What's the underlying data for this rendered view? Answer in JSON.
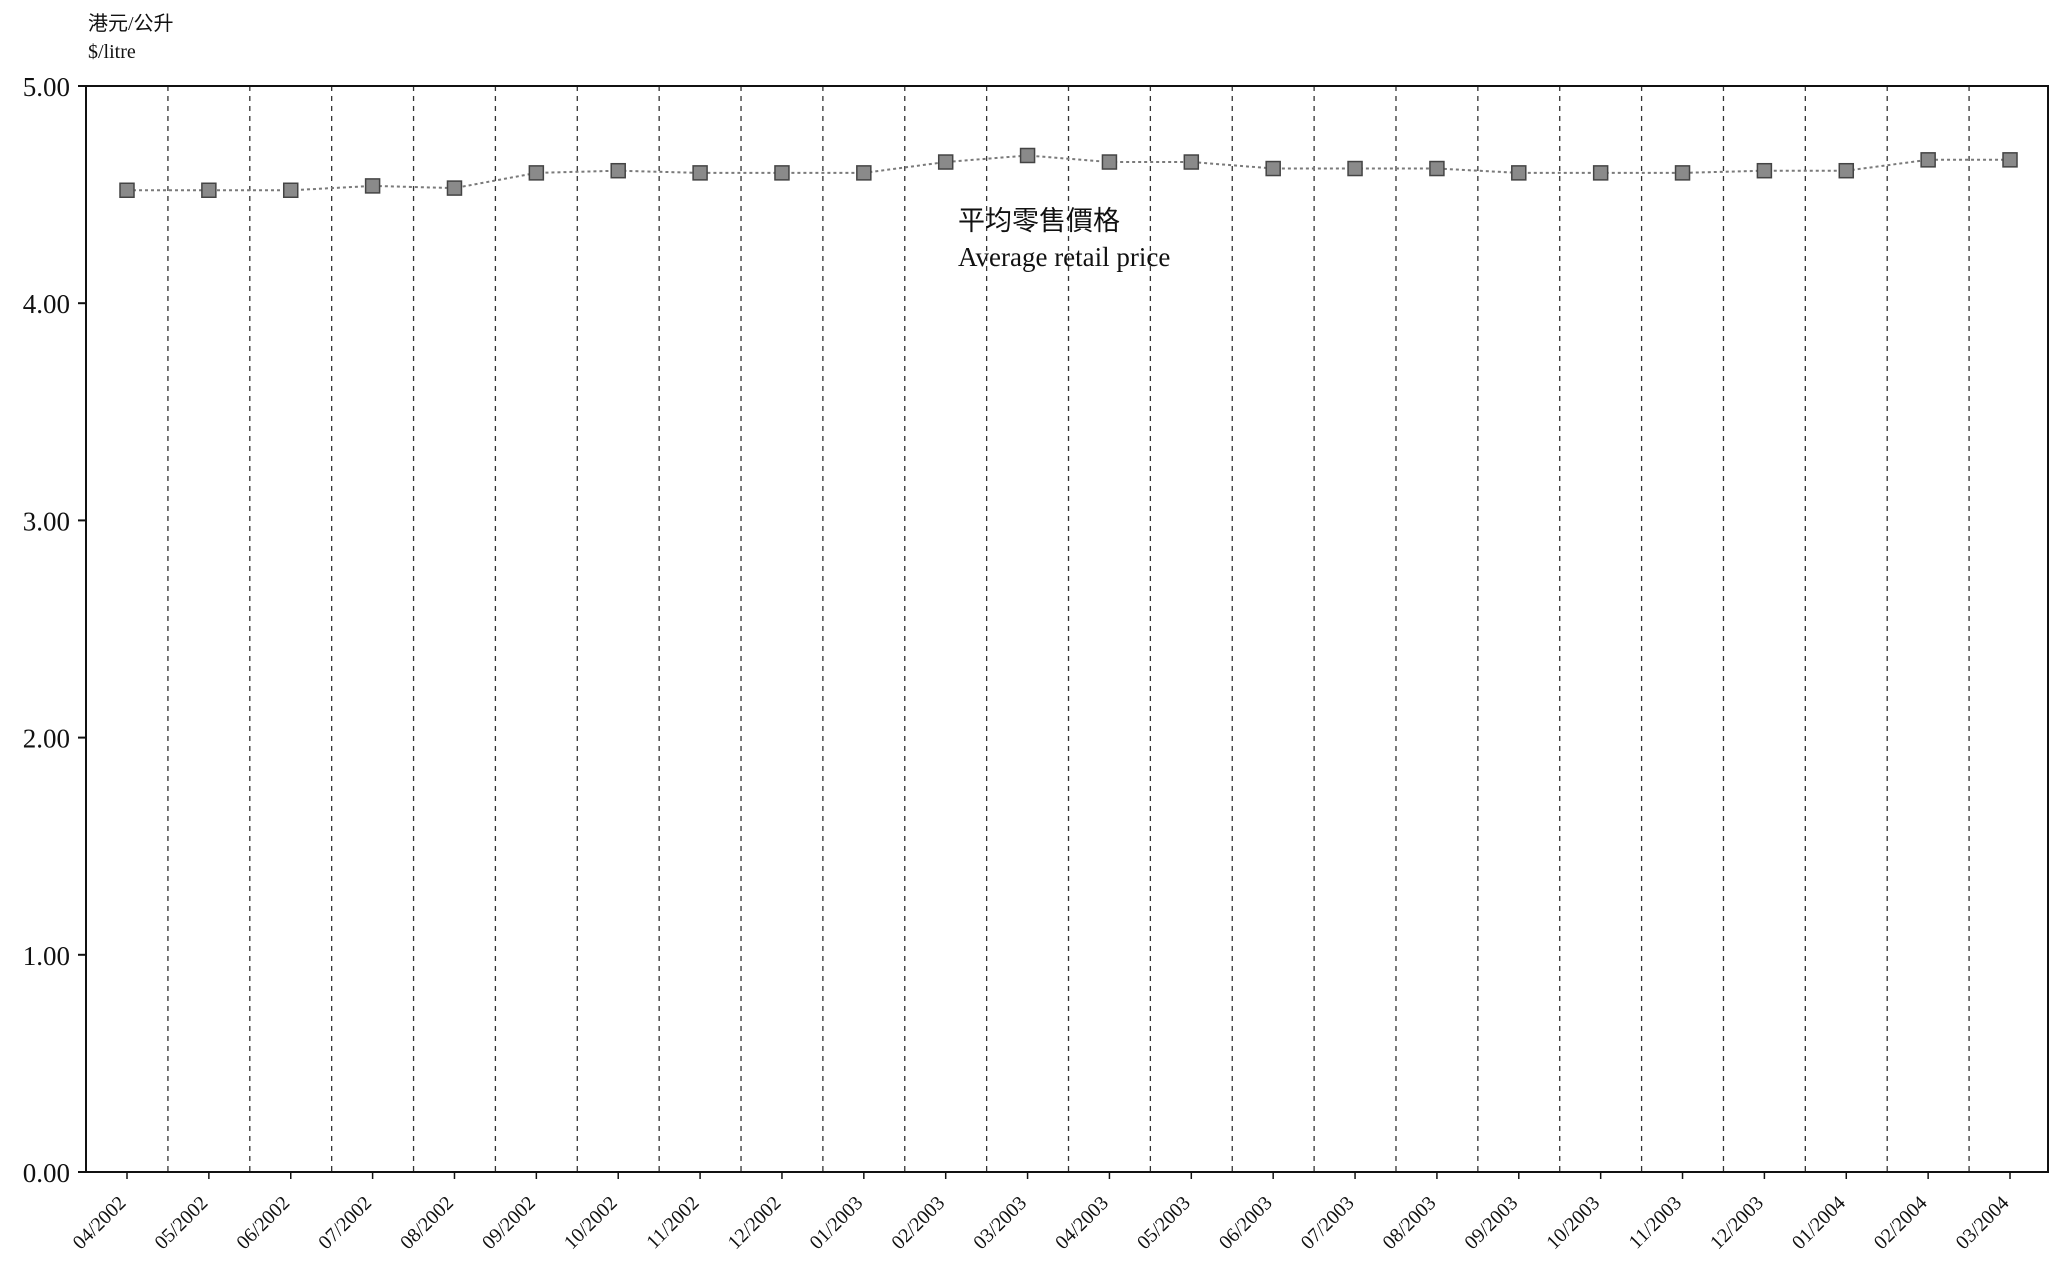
{
  "chart_data": {
    "type": "line",
    "unit_label_zh": "港元/公升",
    "unit_label_en": "$/litre",
    "annotation_zh": "平均零售價格",
    "annotation_en": "Average retail price",
    "ylim": [
      0,
      5
    ],
    "yticks": [
      "0.00",
      "1.00",
      "2.00",
      "3.00",
      "4.00",
      "5.00"
    ],
    "grid": "vertical dashed lines between months",
    "categories": [
      "04/2002",
      "05/2002",
      "06/2002",
      "07/2002",
      "08/2002",
      "09/2002",
      "10/2002",
      "11/2002",
      "12/2002",
      "01/2003",
      "02/2003",
      "03/2003",
      "04/2003",
      "05/2003",
      "06/2003",
      "07/2003",
      "08/2003",
      "09/2003",
      "10/2003",
      "11/2003",
      "12/2003",
      "01/2004",
      "02/2004",
      "03/2004"
    ],
    "series": [
      {
        "values": [
          4.52,
          4.52,
          4.52,
          4.54,
          4.53,
          4.6,
          4.61,
          4.6,
          4.6,
          4.6,
          4.65,
          4.68,
          4.65,
          4.65,
          4.62,
          4.62,
          4.62,
          4.6,
          4.6,
          4.6,
          4.61,
          4.61,
          4.66,
          4.66
        ],
        "color": "#8a8a8a"
      }
    ]
  }
}
